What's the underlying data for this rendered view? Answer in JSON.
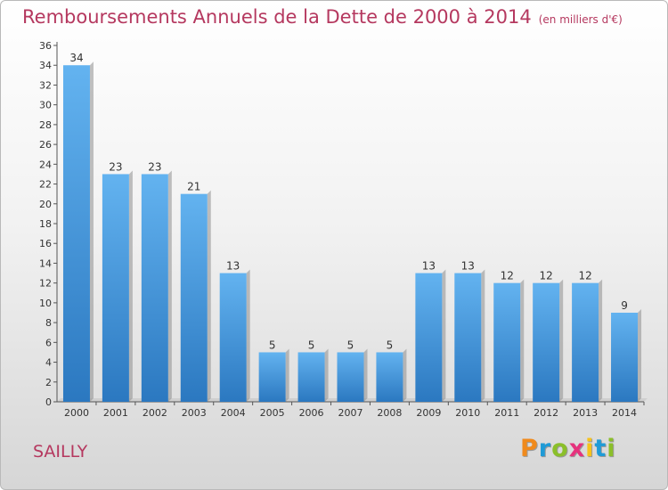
{
  "chart_data": {
    "type": "bar",
    "title": "Remboursements Annuels de la Dette de 2000 à 2014",
    "subtitle": "(en milliers d'€)",
    "categories": [
      "2000",
      "2001",
      "2002",
      "2003",
      "2004",
      "2005",
      "2006",
      "2007",
      "2008",
      "2009",
      "2010",
      "2011",
      "2012",
      "2013",
      "2014"
    ],
    "values": [
      34,
      23,
      23,
      21,
      13,
      5,
      5,
      5,
      5,
      13,
      13,
      12,
      12,
      12,
      9
    ],
    "ylim": [
      0,
      36
    ],
    "yticks": [
      0,
      2,
      4,
      6,
      8,
      10,
      12,
      14,
      16,
      18,
      20,
      22,
      24,
      26,
      28,
      30,
      32,
      34,
      36
    ],
    "grid": false,
    "bar_color": "#3d8fd6"
  },
  "commune": "SAILLY",
  "logo": {
    "text": "Proxiti",
    "letters": [
      "P",
      "r",
      "o",
      "x",
      "i",
      "t",
      "i"
    ],
    "colors": [
      "#f08a1c",
      "#1f9bd7",
      "#8bbf2a",
      "#e6327d",
      "#f6c21c",
      "#1f9bd7",
      "#8bbf2a"
    ]
  },
  "colors": {
    "title": "#b5385f",
    "axis": "#555555"
  }
}
